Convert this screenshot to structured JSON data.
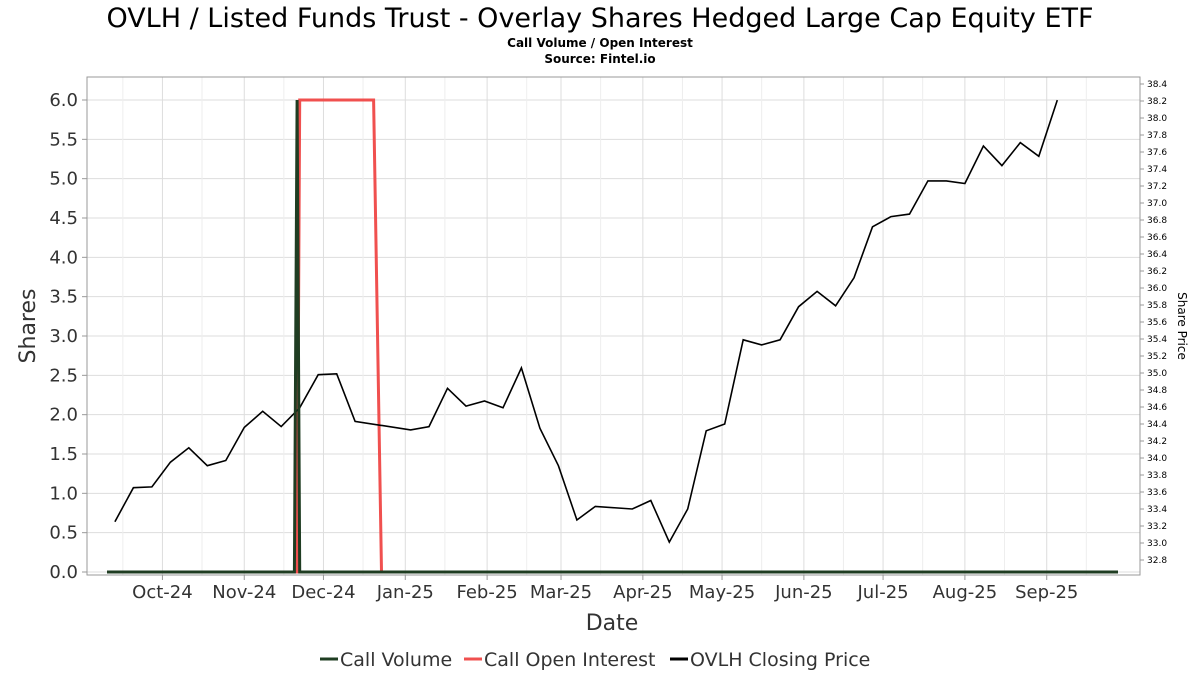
{
  "header": {
    "title": "OVLH / Listed Funds Trust - Overlay Shares Hedged Large Cap Equity ETF",
    "subtitle": "Call Volume / Open Interest",
    "source": "Source: Fintel.io"
  },
  "colors": {
    "call_volume": "#1f3d22",
    "call_open_interest": "#f0504f",
    "closing_price": "#000000",
    "grid": "#dddddd",
    "plot_border": "#999999"
  },
  "chart_data": {
    "type": "line",
    "xlabel": "Date",
    "ylabel": "Shares",
    "y2label": "Share Price",
    "ylim": [
      0,
      6.3
    ],
    "y2lim": [
      32.75,
      38.55
    ],
    "grid": true,
    "legend_position": "bottom-center",
    "x_range": [
      "2024-09-10",
      "2025-09-28"
    ],
    "x_ticks": [
      {
        "date": "2024-10-01",
        "label": "Oct-24"
      },
      {
        "date": "2024-11-01",
        "label": "Nov-24"
      },
      {
        "date": "2024-12-01",
        "label": "Dec-24"
      },
      {
        "date": "2025-01-01",
        "label": "Jan-25"
      },
      {
        "date": "2025-02-01",
        "label": "Feb-25"
      },
      {
        "date": "2025-03-01",
        "label": "Mar-25"
      },
      {
        "date": "2025-04-01",
        "label": "Apr-25"
      },
      {
        "date": "2025-05-01",
        "label": "May-25"
      },
      {
        "date": "2025-06-01",
        "label": "Jun-25"
      },
      {
        "date": "2025-07-01",
        "label": "Jul-25"
      },
      {
        "date": "2025-08-01",
        "label": "Aug-25"
      },
      {
        "date": "2025-09-01",
        "label": "Sep-25"
      }
    ],
    "y_ticks": [
      "0.0",
      "0.5",
      "1.0",
      "1.5",
      "2.0",
      "2.5",
      "3.0",
      "3.5",
      "4.0",
      "4.5",
      "5.0",
      "5.5",
      "6.0"
    ],
    "y2_ticks": [
      "32.8",
      "33.0",
      "33.2",
      "33.4",
      "33.6",
      "33.8",
      "34.0",
      "34.2",
      "34.4",
      "34.6",
      "34.8",
      "35.0",
      "35.2",
      "35.4",
      "35.6",
      "35.8",
      "36.0",
      "36.2",
      "36.4",
      "36.6",
      "36.8",
      "37.0",
      "37.2",
      "37.4",
      "37.6",
      "37.8",
      "38.0",
      "38.2",
      "38.4"
    ],
    "series": [
      {
        "name": "Call Volume",
        "axis": "left",
        "points": [
          [
            "2024-09-10",
            0
          ],
          [
            "2024-11-20",
            0
          ],
          [
            "2024-11-21",
            6.0
          ],
          [
            "2024-11-22",
            0
          ],
          [
            "2025-09-28",
            0
          ]
        ]
      },
      {
        "name": "Call Open Interest",
        "axis": "left",
        "points": [
          [
            "2024-09-10",
            0
          ],
          [
            "2024-11-21",
            0
          ],
          [
            "2024-11-22",
            6.0
          ],
          [
            "2024-12-20",
            6.0
          ],
          [
            "2024-12-23",
            0
          ],
          [
            "2025-09-28",
            0
          ]
        ]
      },
      {
        "name": "OVLH Closing Price",
        "axis": "right",
        "points": [
          [
            "2024-09-13",
            33.25
          ],
          [
            "2024-09-20",
            33.65
          ],
          [
            "2024-09-27",
            33.66
          ],
          [
            "2024-10-04",
            33.95
          ],
          [
            "2024-10-11",
            34.12
          ],
          [
            "2024-10-18",
            33.91
          ],
          [
            "2024-10-25",
            33.97
          ],
          [
            "2024-11-01",
            34.36
          ],
          [
            "2024-11-08",
            34.55
          ],
          [
            "2024-11-15",
            34.37
          ],
          [
            "2024-11-22",
            34.59
          ],
          [
            "2024-11-29",
            34.98
          ],
          [
            "2024-12-06",
            34.99
          ],
          [
            "2024-12-13",
            34.43
          ],
          [
            "2025-01-03",
            34.33
          ],
          [
            "2025-01-10",
            34.37
          ],
          [
            "2025-01-17",
            34.82
          ],
          [
            "2025-01-24",
            34.61
          ],
          [
            "2025-01-31",
            34.67
          ],
          [
            "2025-02-07",
            34.59
          ],
          [
            "2025-02-14",
            35.06
          ],
          [
            "2025-02-21",
            34.35
          ],
          [
            "2025-02-28",
            33.91
          ],
          [
            "2025-03-07",
            33.27
          ],
          [
            "2025-03-14",
            33.43
          ],
          [
            "2025-03-28",
            33.4
          ],
          [
            "2025-04-04",
            33.5
          ],
          [
            "2025-04-11",
            33.01
          ],
          [
            "2025-04-18",
            33.4
          ],
          [
            "2025-04-25",
            34.32
          ],
          [
            "2025-05-02",
            34.4
          ],
          [
            "2025-05-09",
            35.39
          ],
          [
            "2025-05-16",
            35.33
          ],
          [
            "2025-05-23",
            35.39
          ],
          [
            "2025-05-30",
            35.78
          ],
          [
            "2025-06-06",
            35.96
          ],
          [
            "2025-06-13",
            35.79
          ],
          [
            "2025-06-20",
            36.12
          ],
          [
            "2025-06-27",
            36.72
          ],
          [
            "2025-07-04",
            36.84
          ],
          [
            "2025-07-11",
            36.87
          ],
          [
            "2025-07-18",
            37.26
          ],
          [
            "2025-07-25",
            37.26
          ],
          [
            "2025-08-01",
            37.23
          ],
          [
            "2025-08-08",
            37.67
          ],
          [
            "2025-08-15",
            37.44
          ],
          [
            "2025-08-22",
            37.71
          ],
          [
            "2025-08-29",
            37.55
          ],
          [
            "2025-09-05",
            38.21
          ]
        ]
      }
    ]
  }
}
